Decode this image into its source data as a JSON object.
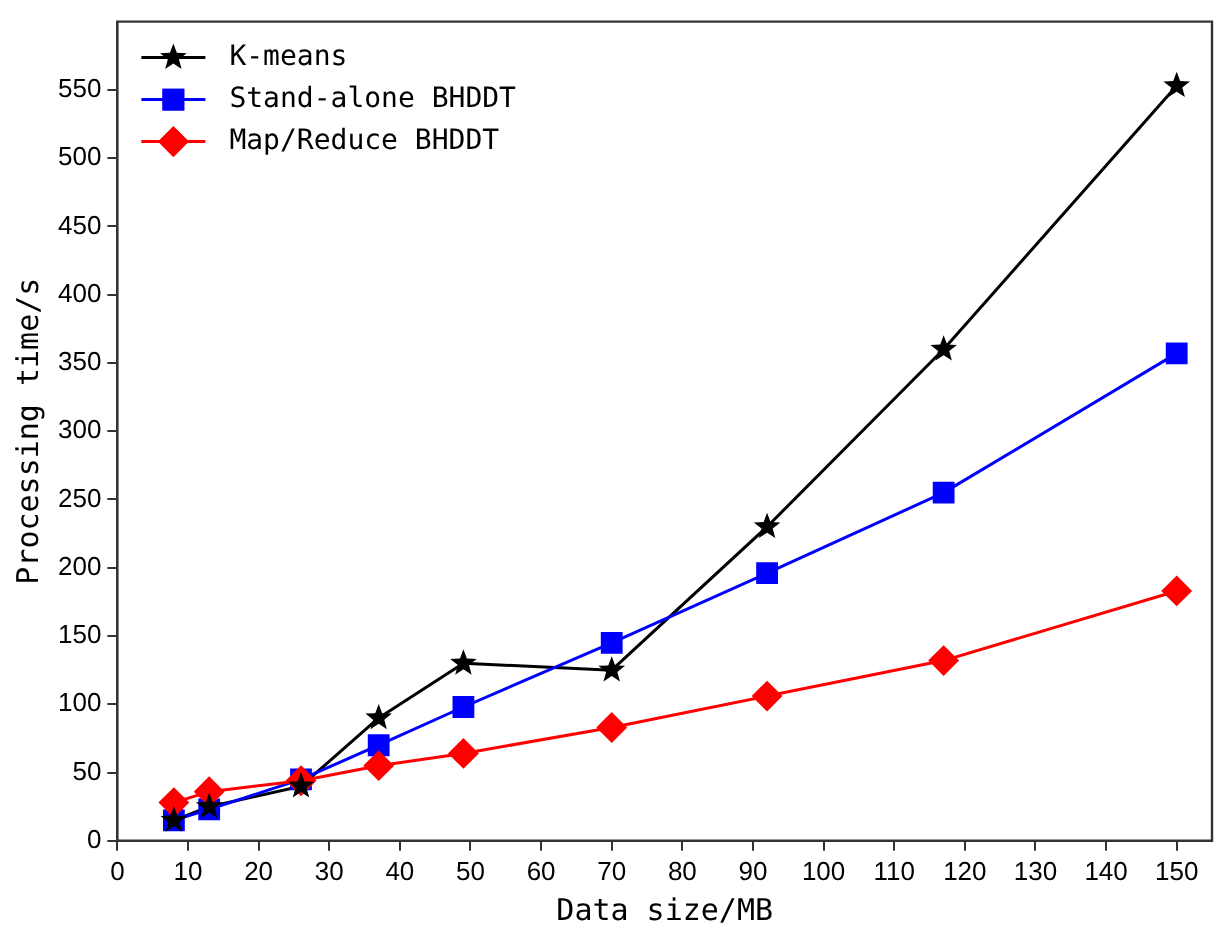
{
  "chart_data": {
    "type": "line",
    "xlabel": "Data size/MB",
    "ylabel": "Processing time/s",
    "x": [
      8,
      13,
      26,
      37,
      49,
      70,
      92,
      117,
      150
    ],
    "series": [
      {
        "name": "K-means",
        "color": "#000000",
        "marker": "star",
        "values": [
          15,
          25,
          40,
          90,
          130,
          125,
          230,
          360,
          553
        ]
      },
      {
        "name": "Stand-alone BHDDT",
        "color": "#0000ff",
        "marker": "square",
        "values": [
          15,
          23,
          45,
          70,
          98,
          145,
          196,
          255,
          357
        ]
      },
      {
        "name": "Map/Reduce BHDDT",
        "color": "#ff0000",
        "marker": "diamond",
        "values": [
          28,
          36,
          44,
          55,
          64,
          83,
          106,
          132,
          183
        ]
      }
    ],
    "xlim": [
      0,
      155
    ],
    "xticks": [
      0,
      10,
      20,
      30,
      40,
      50,
      60,
      70,
      80,
      90,
      100,
      110,
      120,
      130,
      140,
      150
    ],
    "ylim": [
      0,
      600
    ],
    "yticks": [
      0,
      50,
      100,
      150,
      200,
      250,
      300,
      350,
      400,
      450,
      500,
      550
    ],
    "grid": false,
    "legend": "top left",
    "line_style": "solid"
  }
}
